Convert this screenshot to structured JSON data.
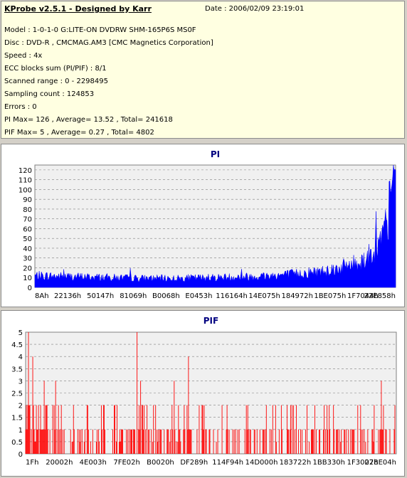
{
  "header": {
    "app_title": "KProbe v2.5.1 - Designed by Karr",
    "date": "Date : 2006/02/09 23:19:01",
    "lines": [
      "Model : 1-0-1-0 G:LITE-ON DVDRW SHM-165P6S MS0F",
      "Disc : DVD-R , CMCMAG.AM3 [CMC Magnetics Corporation]",
      "Speed : 4x",
      "ECC blocks sum (PI/PIF) : 8/1",
      "Scanned range : 0 - 2298495",
      "Sampling count : 124853",
      "Errors : 0",
      "PI Max= 126 , Average= 13.52 , Total= 241618",
      "PIF Max= 5 , Average= 0.27 , Total= 4802"
    ]
  },
  "chart_data": [
    {
      "type": "area",
      "title": "PI",
      "ylim": [
        0,
        125
      ],
      "yticks": [
        0,
        10,
        20,
        30,
        40,
        50,
        60,
        70,
        80,
        90,
        100,
        110,
        120
      ],
      "xticks": [
        "8Ah",
        "22136h",
        "50147h",
        "81069h",
        "B0068h",
        "E0453h",
        "116164h",
        "14E075h",
        "184972h",
        "1BE075h",
        "1F7044h",
        "22E858h"
      ],
      "grid": true,
      "color": "#0000ff",
      "profile": {
        "x": [
          0,
          0.1,
          0.2,
          0.3,
          0.4,
          0.5,
          0.6,
          0.7,
          0.75,
          0.8,
          0.85,
          0.9,
          0.93,
          0.95,
          0.97,
          0.98,
          0.99,
          1.0
        ],
        "y": [
          13,
          12,
          11,
          10,
          10,
          11,
          12,
          14,
          16,
          18,
          22,
          28,
          36,
          45,
          60,
          80,
          105,
          120
        ]
      }
    },
    {
      "type": "bar",
      "title": "PIF",
      "ylim": [
        0,
        5
      ],
      "yticks": [
        0,
        0.5,
        1,
        1.5,
        2,
        2.5,
        3,
        3.5,
        4,
        4.5,
        5
      ],
      "xticks": [
        "1Fh",
        "20002h",
        "4E003h",
        "7FE02h",
        "B0020h",
        "DF289h",
        "114F94h",
        "14D000h",
        "183722h",
        "1BB330h",
        "1F3007h",
        "228E04h"
      ],
      "grid": true,
      "color": "#ff0000",
      "peaks": [
        {
          "pos": 0.008,
          "value": 5
        },
        {
          "pos": 0.02,
          "value": 4
        },
        {
          "pos": 0.05,
          "value": 3
        },
        {
          "pos": 0.08,
          "value": 3
        },
        {
          "pos": 0.3,
          "value": 5
        },
        {
          "pos": 0.31,
          "value": 3
        },
        {
          "pos": 0.4,
          "value": 3
        },
        {
          "pos": 0.44,
          "value": 4
        },
        {
          "pos": 0.96,
          "value": 3
        }
      ]
    }
  ]
}
